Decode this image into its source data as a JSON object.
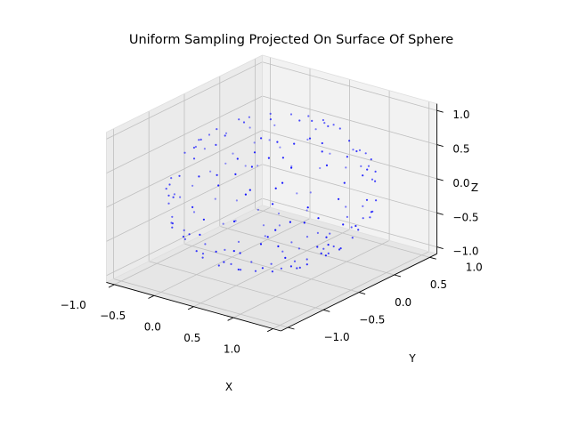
{
  "chart_data": {
    "type": "scatter",
    "projection": "3d",
    "title": "Uniform Sampling Projected On Surface Of Sphere",
    "xlabel": "X",
    "ylabel": "Y",
    "zlabel": "Z",
    "xlim": [
      -1.1,
      1.1
    ],
    "ylim": [
      -1.1,
      1.1
    ],
    "zlim": [
      -1.1,
      1.1
    ],
    "xticks": [
      -1.0,
      -0.5,
      0.0,
      0.5,
      1.0
    ],
    "xtick_labels": [
      "−1.0",
      "−0.5",
      "0.0",
      "0.5",
      "1.0"
    ],
    "yticks": [
      -1.0,
      -0.5,
      0.0,
      0.5,
      1.0
    ],
    "ytick_labels": [
      "−1.0",
      "−0.5",
      "0.0",
      "0.5",
      "1.0"
    ],
    "zticks": [
      -1.0,
      -0.5,
      0.0,
      0.5,
      1.0
    ],
    "ztick_labels": [
      "−1.0",
      "−0.5",
      "0.0",
      "0.5",
      "1.0"
    ],
    "grid": true,
    "marker_color": "#0000ff",
    "pane_colors": {
      "xz": "#f2f2f2",
      "yz": "#ebebeb",
      "floor": "#e6e6e6"
    },
    "grid_color": "#bfbfbf",
    "points": [
      [
        0.07,
        -0.83,
        0.56
      ],
      [
        -0.44,
        0.38,
        -0.81
      ],
      [
        0.62,
        0.71,
        0.33
      ],
      [
        -0.91,
        -0.05,
        0.41
      ],
      [
        0.24,
        0.55,
        -0.8
      ],
      [
        0.88,
        -0.34,
        -0.33
      ],
      [
        -0.17,
        -0.97,
        -0.16
      ],
      [
        -0.6,
        0.79,
        0.07
      ],
      [
        0.39,
        -0.12,
        0.91
      ],
      [
        0.71,
        0.16,
        -0.68
      ],
      [
        -0.78,
        -0.53,
        -0.33
      ],
      [
        0.05,
        0.99,
        -0.12
      ],
      [
        -0.31,
        -0.31,
        0.9
      ],
      [
        0.96,
        0.27,
        0.07
      ],
      [
        -0.52,
        0.12,
        0.85
      ],
      [
        0.33,
        -0.9,
        -0.28
      ],
      [
        -0.09,
        0.62,
        0.78
      ],
      [
        0.58,
        -0.59,
        0.56
      ],
      [
        -0.97,
        0.22,
        -0.11
      ],
      [
        0.12,
        -0.36,
        -0.92
      ],
      [
        -0.66,
        -0.7,
        0.27
      ],
      [
        0.81,
        0.44,
        0.38
      ],
      [
        -0.25,
        0.83,
        -0.5
      ],
      [
        0.47,
        0.35,
        -0.81
      ],
      [
        -0.84,
        0.3,
        0.45
      ],
      [
        0.19,
        -0.68,
        -0.71
      ],
      [
        0.69,
        -0.72,
        0.05
      ],
      [
        -0.4,
        -0.52,
        -0.75
      ],
      [
        0.9,
        0.02,
        0.43
      ],
      [
        -0.05,
        0.21,
        -0.98
      ],
      [
        0.28,
        0.93,
        0.24
      ],
      [
        -0.72,
        -0.22,
        0.66
      ],
      [
        0.55,
        -0.26,
        -0.79
      ],
      [
        -0.36,
        0.91,
        0.2
      ],
      [
        0.03,
        -0.99,
        0.13
      ],
      [
        0.77,
        0.56,
        -0.31
      ],
      [
        -0.58,
        0.46,
        -0.67
      ],
      [
        0.42,
        0.07,
        0.9
      ],
      [
        -0.93,
        -0.33,
        -0.15
      ],
      [
        0.15,
        0.4,
        0.9
      ],
      [
        0.63,
        -0.43,
        -0.65
      ],
      [
        -0.21,
        -0.79,
        0.58
      ],
      [
        0.99,
        -0.1,
        -0.09
      ],
      [
        -0.47,
        -0.87,
        -0.15
      ],
      [
        0.31,
        0.72,
        -0.62
      ],
      [
        -0.75,
        0.64,
        -0.17
      ],
      [
        0.08,
        -0.57,
        0.82
      ],
      [
        0.86,
        -0.5,
        0.1
      ],
      [
        -0.13,
        -0.14,
        -0.98
      ],
      [
        0.5,
        0.86,
        -0.08
      ],
      [
        -0.62,
        -0.4,
        0.67
      ],
      [
        0.22,
        0.08,
        -0.97
      ],
      [
        -0.89,
        0.45,
        0.06
      ],
      [
        0.37,
        -0.78,
        0.5
      ],
      [
        -0.04,
        0.79,
        0.61
      ],
      [
        0.74,
        -0.05,
        0.67
      ],
      [
        -0.34,
        0.29,
        -0.89
      ],
      [
        0.59,
        0.63,
        -0.5
      ],
      [
        -0.81,
        -0.58,
        0.1
      ],
      [
        0.13,
        -0.93,
        -0.34
      ],
      [
        0.93,
        0.18,
        -0.33
      ],
      [
        -0.28,
        0.59,
        0.76
      ],
      [
        0.45,
        -0.63,
        -0.63
      ],
      [
        -0.69,
        0.09,
        -0.72
      ],
      [
        0.02,
        0.48,
        -0.88
      ],
      [
        0.66,
        0.46,
        0.59
      ],
      [
        -0.51,
        -0.73,
        0.46
      ],
      [
        0.26,
        -0.21,
        0.94
      ],
      [
        -0.95,
        0.12,
        0.28
      ],
      [
        0.84,
        -0.24,
        -0.49
      ],
      [
        -0.16,
        -0.88,
        -0.45
      ],
      [
        0.4,
        0.88,
        0.26
      ],
      [
        -0.57,
        0.68,
        0.46
      ],
      [
        0.11,
        0.27,
        0.96
      ],
      [
        0.7,
        -0.69,
        -0.2
      ],
      [
        -0.43,
        -0.18,
        -0.88
      ],
      [
        0.52,
        0.22,
        -0.83
      ],
      [
        -0.86,
        -0.13,
        -0.49
      ],
      [
        0.18,
        -0.44,
        0.88
      ],
      [
        0.89,
        0.41,
        -0.2
      ],
      [
        -0.24,
        0.95,
        -0.2
      ],
      [
        0.35,
        -0.92,
        0.17
      ],
      [
        -0.7,
        -0.63,
        -0.34
      ],
      [
        0.61,
        0.03,
        0.79
      ],
      [
        -0.11,
        -0.62,
        -0.78
      ],
      [
        0.78,
        -0.61,
        0.14
      ],
      [
        -0.39,
        0.42,
        0.82
      ],
      [
        0.04,
        -0.05,
        -1.0
      ],
      [
        -0.82,
        0.55,
        -0.15
      ],
      [
        0.29,
        0.64,
        0.71
      ],
      [
        0.57,
        -0.36,
        0.74
      ],
      [
        -0.64,
        -0.28,
        0.72
      ],
      [
        0.95,
        -0.12,
        0.28
      ],
      [
        -0.19,
        0.71,
        -0.68
      ],
      [
        0.43,
        -0.47,
        -0.77
      ],
      [
        -0.53,
        -0.81,
        -0.26
      ],
      [
        0.16,
        0.97,
        0.19
      ],
      [
        -0.76,
        0.36,
        -0.54
      ],
      [
        0.68,
        0.38,
        -0.63
      ],
      [
        -0.01,
        -0.76,
        0.65
      ],
      [
        0.83,
        0.53,
        0.17
      ],
      [
        -0.46,
        0.05,
        -0.89
      ],
      [
        0.09,
        -0.25,
        0.96
      ],
      [
        -0.9,
        -0.41,
        0.14
      ],
      [
        0.36,
        0.33,
        -0.87
      ],
      [
        0.64,
        -0.77,
        -0.04
      ],
      [
        -0.3,
        -0.45,
        0.84
      ],
      [
        0.21,
        0.81,
        -0.55
      ],
      [
        -0.67,
        0.72,
        0.19
      ],
      [
        0.5,
        -0.16,
        -0.85
      ],
      [
        -0.87,
        0.18,
        -0.46
      ],
      [
        0.73,
        0.25,
        0.64
      ],
      [
        -0.14,
        -0.96,
        0.24
      ],
      [
        0.92,
        -0.37,
        0.12
      ],
      [
        -0.41,
        0.56,
        -0.72
      ],
      [
        0.27,
        -0.58,
        0.77
      ],
      [
        -0.59,
        -0.56,
        -0.58
      ],
      [
        0.06,
        0.66,
        0.75
      ],
      [
        0.8,
        -0.13,
        -0.59
      ],
      [
        -0.33,
        -0.02,
        0.94
      ],
      [
        0.46,
        0.77,
        -0.44
      ],
      [
        -0.79,
        -0.34,
        0.51
      ],
      [
        0.14,
        -0.83,
        -0.54
      ],
      [
        0.97,
        0.1,
        -0.22
      ],
      [
        -0.23,
        0.88,
        0.41
      ],
      [
        0.6,
        -0.52,
        0.61
      ],
      [
        -0.55,
        0.3,
        0.78
      ],
      [
        0.32,
        0.14,
        -0.94
      ],
      [
        -0.94,
        -0.24,
        -0.24
      ],
      [
        0.71,
        0.67,
        0.2
      ],
      [
        -0.07,
        0.36,
        -0.93
      ],
      [
        0.38,
        -0.87,
        -0.31
      ],
      [
        -0.73,
        0.51,
        0.46
      ],
      [
        0.54,
        0.49,
        0.69
      ],
      [
        -0.27,
        -0.67,
        -0.69
      ],
      [
        0.85,
        -0.44,
        0.29
      ],
      [
        -0.48,
        -0.85,
        0.22
      ],
      [
        0.1,
        0.54,
        -0.83
      ],
      [
        -0.63,
        -0.07,
        0.77
      ],
      [
        0.44,
        -0.33,
        0.83
      ],
      [
        0.25,
        0.98,
        -0.03
      ],
      [
        -0.92,
        0.38,
        -0.06
      ],
      [
        0.67,
        -0.25,
        -0.7
      ],
      [
        -0.18,
        -0.37,
        -0.91
      ],
      [
        0.76,
        0.62,
        -0.18
      ],
      [
        -0.37,
        0.77,
        -0.52
      ],
      [
        0.01,
        -0.45,
        -0.89
      ],
      [
        0.91,
        -0.22,
        -0.35
      ],
      [
        -0.71,
        -0.44,
        -0.55
      ],
      [
        0.3,
        0.46,
        0.84
      ],
      [
        -0.5,
        0.84,
        -0.2
      ],
      [
        0.62,
        -0.68,
        0.39
      ],
      [
        -0.12,
        0.12,
        0.98
      ],
      [
        0.48,
        0.59,
        -0.65
      ],
      [
        -0.85,
        -0.5,
        -0.17
      ],
      [
        0.17,
        -0.7,
        0.69
      ],
      [
        0.79,
        0.09,
        -0.6
      ],
      [
        -0.29,
        -0.92,
        -0.26
      ],
      [
        0.41,
        0.91,
        0.06
      ],
      [
        -0.65,
        0.22,
        -0.73
      ],
      [
        0.58,
        -0.8,
        -0.15
      ],
      [
        -0.44,
        -0.6,
        0.67
      ],
      [
        0.87,
        0.31,
        0.38
      ],
      [
        -0.02,
        -0.99,
        -0.11
      ],
      [
        0.23,
        -0.12,
        -0.97
      ],
      [
        -0.77,
        0.62,
        0.17
      ],
      [
        0.53,
        0.12,
        0.84
      ],
      [
        -0.32,
        0.47,
        -0.82
      ],
      [
        0.94,
        -0.28,
        -0.2
      ],
      [
        -0.56,
        -0.31,
        -0.77
      ],
      [
        0.12,
        0.74,
        0.66
      ],
      [
        0.69,
        -0.58,
        -0.43
      ],
      [
        -0.83,
        0.05,
        0.56
      ],
      [
        0.34,
        -0.42,
        0.84
      ],
      [
        -0.15,
        0.99,
        0.02
      ],
      [
        0.81,
        0.48,
        -0.34
      ],
      [
        -0.6,
        -0.78,
        0.17
      ],
      [
        0.07,
        0.31,
        -0.95
      ],
      [
        -0.98,
        -0.02,
        -0.2
      ],
      [
        0.39,
        -0.74,
        0.55
      ]
    ]
  }
}
